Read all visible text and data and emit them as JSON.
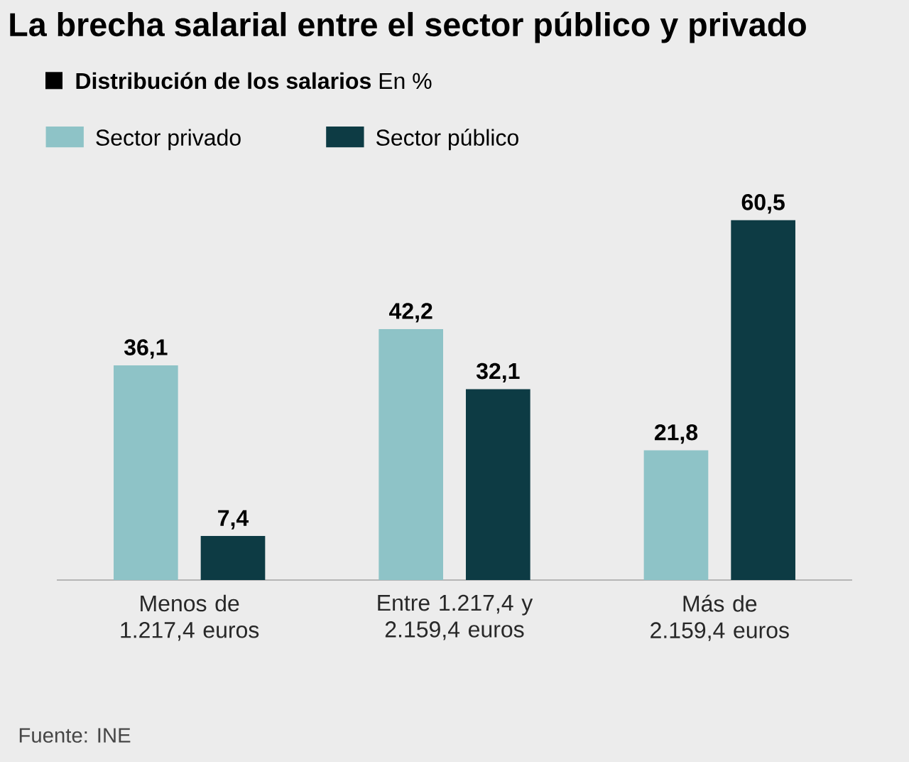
{
  "chart_data": {
    "type": "bar",
    "title": "La brecha salarial entre el sector público y privado",
    "subtitle": "**Distribución de los salarios** En %",
    "categories": [
      "Menos de 1.217,4 euros",
      "Entre 1.217,4 y 2.159,4 euros",
      "Más de 2.159,4 euros"
    ],
    "series": [
      {
        "name": "Sector privado",
        "color": "#8ec3c7",
        "values": [
          36.1,
          42.2,
          21.8
        ],
        "value_labels": [
          "36,1",
          "42,2",
          "21,8"
        ]
      },
      {
        "name": "Sector público",
        "color": "#0d3b44",
        "values": [
          7.4,
          32.1,
          60.5
        ],
        "value_labels": [
          "7,4",
          "32,1",
          "60,5"
        ]
      }
    ],
    "legend": "top left",
    "data_labels": true,
    "annotations": [
      "Fuente: INE"
    ]
  }
}
